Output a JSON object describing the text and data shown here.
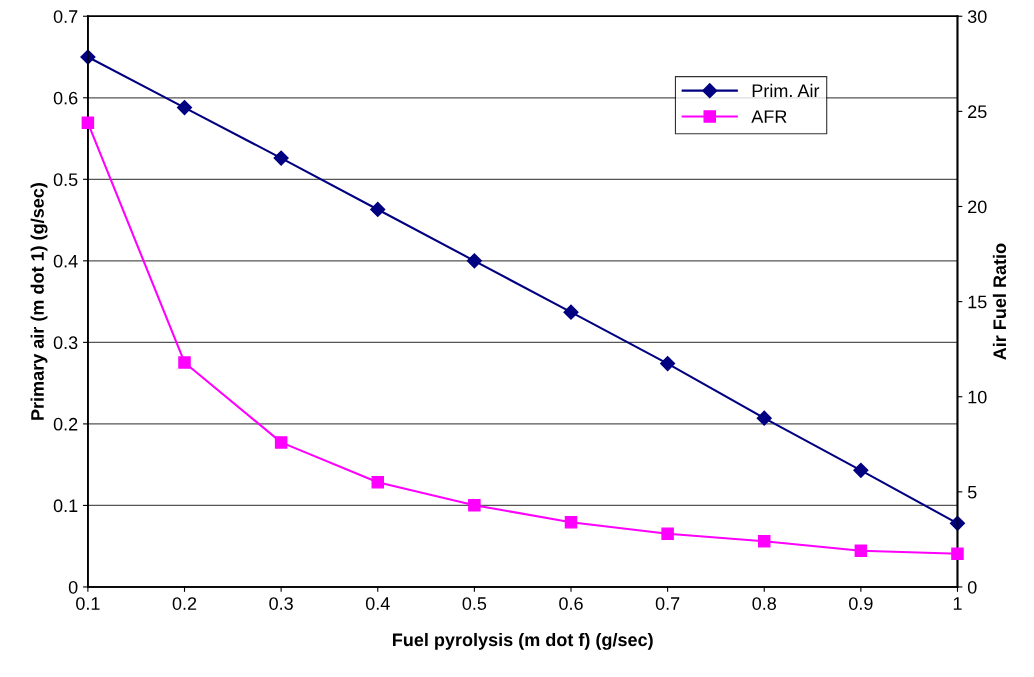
{
  "chart_data": {
    "type": "line",
    "xlabel": "Fuel pyrolysis (m dot f) (g/sec)",
    "ylabel": "Primary air (m dot 1) (g/sec)",
    "y2label": "Air Fuel Ratio",
    "x": [
      0.1,
      0.2,
      0.3,
      0.4,
      0.5,
      0.6,
      0.7,
      0.8,
      0.9,
      1
    ],
    "xlim": [
      0.1,
      1
    ],
    "xticks": [
      0.1,
      0.2,
      0.3,
      0.4,
      0.5,
      0.6,
      0.7,
      0.8,
      0.9,
      1
    ],
    "ylim": [
      0,
      0.7
    ],
    "yticks": [
      0,
      0.1,
      0.2,
      0.3,
      0.4,
      0.5,
      0.6,
      0.7
    ],
    "y2lim": [
      0,
      30
    ],
    "y2ticks": [
      0,
      5,
      10,
      15,
      20,
      25,
      30
    ],
    "grid": "y",
    "legend": "top right",
    "series": [
      {
        "name": "Prim. Air",
        "color": "#000080",
        "marker": "diamond",
        "values": [
          0.65,
          0.588,
          0.526,
          0.463,
          0.4,
          0.337,
          0.274,
          0.207,
          0.143,
          0.078
        ]
      },
      {
        "name": "AFR",
        "color": "#ff00ff",
        "marker": "square",
        "axis": "y2",
        "values": [
          24.4,
          11.8,
          7.6,
          5.5,
          4.3,
          3.4,
          2.8,
          2.4,
          1.9,
          1.75
        ]
      }
    ]
  }
}
